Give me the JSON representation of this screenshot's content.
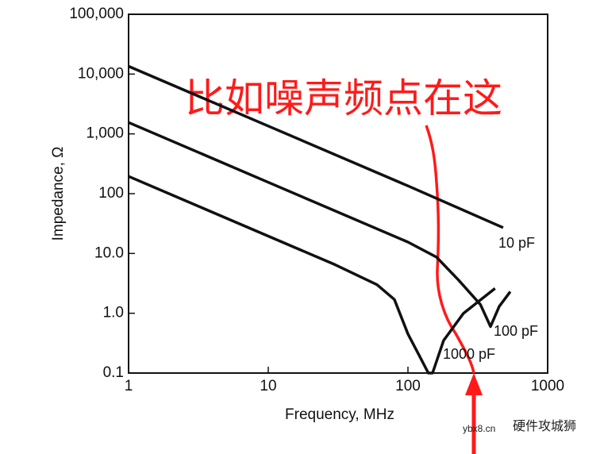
{
  "chart_data": {
    "type": "line",
    "x_label": "Frequency, MHz",
    "y_label": "Impedance, Ω",
    "log_x": true,
    "log_y": true,
    "xlim": [
      1,
      1000
    ],
    "xticks": [
      1,
      10,
      100,
      1000
    ],
    "ylim": [
      0.1,
      100000
    ],
    "yticks": [
      0.1,
      {
        "value": 1,
        "label": "1.0"
      },
      {
        "value": 10,
        "label": "10.0"
      },
      100,
      {
        "value": 1000,
        "label": "1,000"
      },
      {
        "value": 10000,
        "label": "10,000"
      },
      {
        "value": 100000,
        "label": "100,000"
      }
    ],
    "series": [
      {
        "name": "10 pF",
        "color": "#111111",
        "x": [
          1,
          10,
          100,
          480
        ],
        "values": [
          13500,
          1350,
          135,
          27
        ]
      },
      {
        "name": "100 pF",
        "color": "#111111",
        "x": [
          1,
          10,
          100,
          160,
          230,
          330,
          390,
          450,
          540
        ],
        "values": [
          1550,
          155,
          15.5,
          8.7,
          3.6,
          1.4,
          0.6,
          1.3,
          2.3
        ]
      },
      {
        "name": "1000 pF",
        "color": "#111111",
        "x": [
          1,
          10,
          30,
          60,
          80,
          100,
          120,
          140,
          150,
          180,
          250,
          420
        ],
        "values": [
          195,
          19.5,
          6.5,
          3.0,
          1.7,
          0.45,
          0.2,
          0.1,
          0.1,
          0.35,
          1.0,
          2.6
        ]
      }
    ],
    "annotations": [
      "比如噪声频点在这",
      "硬件攻城狮",
      "ybx8.cn"
    ]
  }
}
